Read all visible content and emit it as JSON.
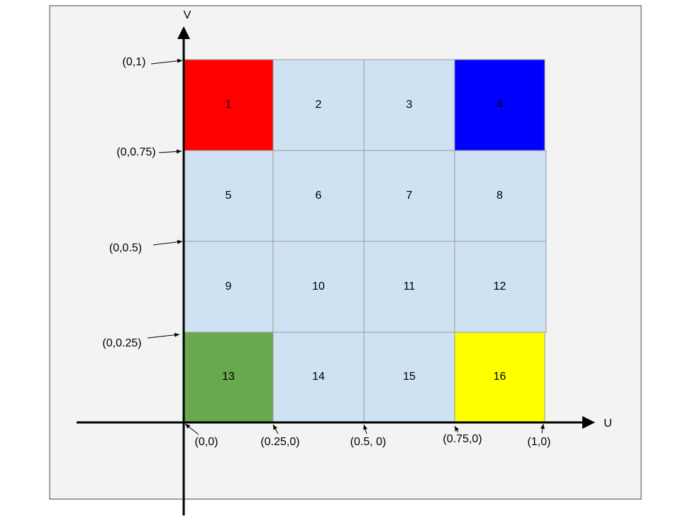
{
  "axes": {
    "u": "U",
    "v": "V"
  },
  "cells": [
    "1",
    "2",
    "3",
    "4",
    "5",
    "6",
    "7",
    "8",
    "9",
    "10",
    "11",
    "12",
    "13",
    "14",
    "15",
    "16"
  ],
  "coordinate_labels": [
    "(0,1)",
    "(0,0.75)",
    "(0,0.5)",
    "(0,0.25)",
    "(0,0)",
    "(0.25,0)",
    "(0.5, 0)",
    "(0.75,0)",
    "(1,0)"
  ]
}
